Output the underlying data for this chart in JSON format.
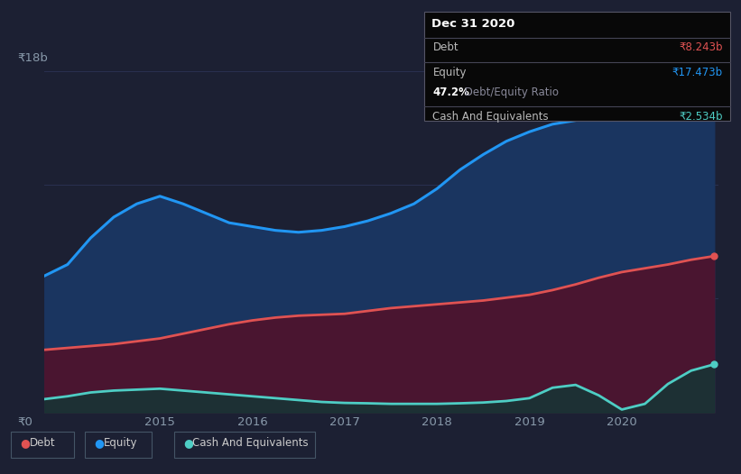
{
  "bg_color": "#1c2033",
  "chart_bg": "#1c2033",
  "grid_color": "#2a3050",
  "title_y_label": "₹18b",
  "title_y_bottom": "₹0",
  "x_ticks": [
    "2015",
    "2016",
    "2017",
    "2018",
    "2019",
    "2020"
  ],
  "equity_color": "#2196f3",
  "debt_color": "#e05252",
  "cash_color": "#4ecdc4",
  "equity_fill": "#1a3560",
  "debt_fill": "#4a1530",
  "cash_fill": "#163535",
  "tooltip_bg": "#080808",
  "tooltip_border": "#444455",
  "tooltip_title": "Dec 31 2020",
  "tooltip_debt_label": "Debt",
  "tooltip_debt_value": "₹8.243b",
  "tooltip_equity_label": "Equity",
  "tooltip_equity_value": "₹17.473b",
  "tooltip_ratio_bold": "47.2%",
  "tooltip_ratio_rest": " Debt/Equity Ratio",
  "tooltip_cash_label": "Cash And Equivalents",
  "tooltip_cash_value": "₹2.534b",
  "legend_debt": "Debt",
  "legend_equity": "Equity",
  "legend_cash": "Cash And Equivalents",
  "x": [
    2013.75,
    2014.0,
    2014.25,
    2014.5,
    2014.75,
    2015.0,
    2015.25,
    2015.5,
    2015.75,
    2016.0,
    2016.25,
    2016.5,
    2016.75,
    2017.0,
    2017.25,
    2017.5,
    2017.75,
    2018.0,
    2018.25,
    2018.5,
    2018.75,
    2019.0,
    2019.25,
    2019.5,
    2019.75,
    2020.0,
    2020.25,
    2020.5,
    2020.75,
    2021.0
  ],
  "equity": [
    7.2,
    7.8,
    9.2,
    10.3,
    11.0,
    11.4,
    11.0,
    10.5,
    10.0,
    9.8,
    9.6,
    9.5,
    9.6,
    9.8,
    10.1,
    10.5,
    11.0,
    11.8,
    12.8,
    13.6,
    14.3,
    14.8,
    15.2,
    15.4,
    15.7,
    15.9,
    16.4,
    16.9,
    17.3,
    17.473
  ],
  "debt": [
    3.3,
    3.4,
    3.5,
    3.6,
    3.75,
    3.9,
    4.15,
    4.4,
    4.65,
    4.85,
    5.0,
    5.1,
    5.15,
    5.2,
    5.35,
    5.5,
    5.6,
    5.7,
    5.8,
    5.9,
    6.05,
    6.2,
    6.45,
    6.75,
    7.1,
    7.4,
    7.6,
    7.8,
    8.05,
    8.243
  ],
  "cash": [
    0.7,
    0.85,
    1.05,
    1.15,
    1.2,
    1.25,
    1.15,
    1.05,
    0.95,
    0.85,
    0.75,
    0.65,
    0.55,
    0.5,
    0.48,
    0.45,
    0.45,
    0.45,
    0.48,
    0.52,
    0.6,
    0.75,
    1.3,
    1.45,
    0.9,
    0.15,
    0.45,
    1.5,
    2.2,
    2.534
  ],
  "ylim": [
    0,
    18
  ],
  "xlim_start": 2013.75,
  "xlim_end": 2021.05
}
